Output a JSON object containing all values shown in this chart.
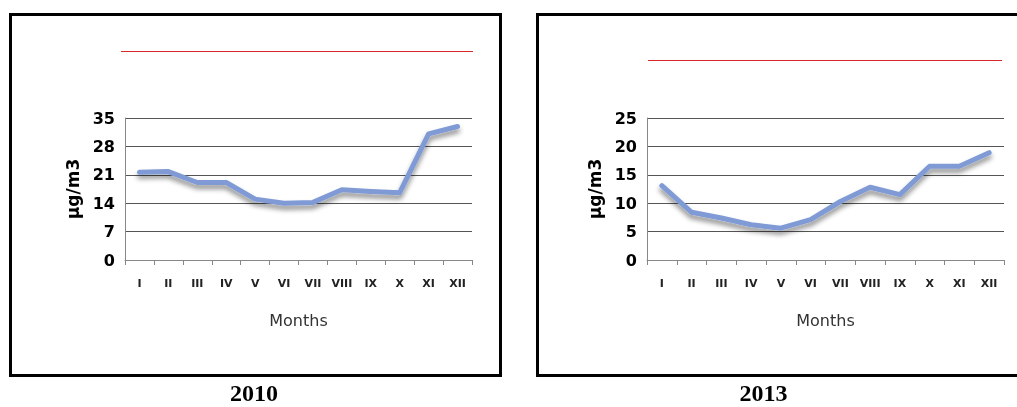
{
  "chart_data": [
    {
      "type": "line",
      "title": "2010",
      "xlabel": "Months",
      "ylabel": "µg/m3",
      "categories": [
        "I",
        "II",
        "III",
        "IV",
        "V",
        "VI",
        "VII",
        "VIII",
        "IX",
        "X",
        "XI",
        "XII"
      ],
      "series": [
        {
          "color": "#7f9ad4",
          "values": [
            21.6,
            21.8,
            19.1,
            19.1,
            15.0,
            14.0,
            14.2,
            17.3,
            16.9,
            16.6,
            31.1,
            32.9
          ]
        }
      ],
      "ylim": [
        0,
        35
      ],
      "yticks": [
        0,
        7,
        14,
        21,
        28,
        35
      ],
      "grid": "y",
      "marker": "none",
      "line_style": "solid"
    },
    {
      "type": "line",
      "title": "2013",
      "xlabel": "Months",
      "ylabel": "µg/m3",
      "categories": [
        "I",
        "II",
        "III",
        "IV",
        "V",
        "VI",
        "VII",
        "VIII",
        "IX",
        "X",
        "XI",
        "XII"
      ],
      "series": [
        {
          "color": "#7f9ad4",
          "values": [
            13.1,
            8.4,
            7.4,
            6.2,
            5.6,
            7.1,
            10.3,
            12.8,
            11.5,
            16.5,
            16.5,
            18.9
          ]
        }
      ],
      "ylim": [
        0,
        25
      ],
      "yticks": [
        0,
        5,
        10,
        15,
        20,
        25
      ],
      "grid": "y",
      "marker": "none",
      "line_style": "solid"
    }
  ]
}
